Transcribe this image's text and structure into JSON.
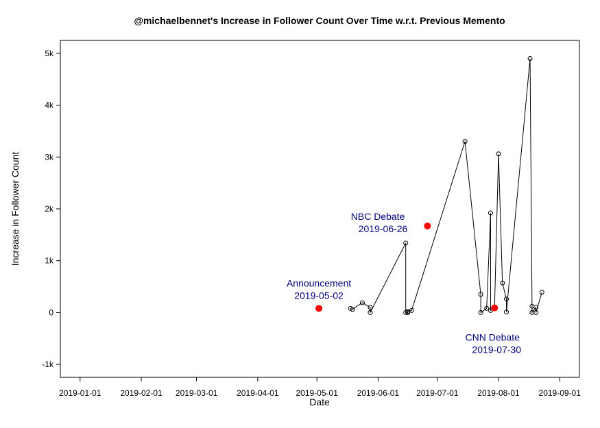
{
  "chart_data": {
    "type": "line",
    "title": "@michaelbennet's Increase in Follower Count Over Time w.r.t. Previous Memento",
    "xlabel": "Date",
    "ylabel": "Increase in Follower Count",
    "x_ticks": [
      "2019-01-01",
      "2019-02-01",
      "2019-03-01",
      "2019-04-01",
      "2019-05-01",
      "2019-06-01",
      "2019-07-01",
      "2019-08-01",
      "2019-09-01"
    ],
    "y_ticks": [
      -1000,
      0,
      1000,
      2000,
      3000,
      4000,
      5000
    ],
    "y_tick_labels": [
      "-1k",
      "0",
      "1k",
      "2k",
      "3k",
      "4k",
      "5k"
    ],
    "xlim": [
      "2018-12-22",
      "2019-09-11"
    ],
    "ylim": [
      -1250,
      5250
    ],
    "series": [
      {
        "color": "#000000",
        "points": [
          {
            "x": "2019-05-18",
            "y": 80
          },
          {
            "x": "2019-05-19",
            "y": 60
          },
          {
            "x": "2019-05-24",
            "y": 190
          },
          {
            "x": "2019-05-28",
            "y": 100
          },
          {
            "x": "2019-05-28",
            "y": 0
          },
          {
            "x": "2019-06-15",
            "y": 1340
          },
          {
            "x": "2019-06-15",
            "y": 0
          },
          {
            "x": "2019-06-16",
            "y": 0
          },
          {
            "x": "2019-06-16",
            "y": 20
          },
          {
            "x": "2019-06-18",
            "y": 40
          },
          {
            "x": "2019-07-15",
            "y": 3300
          },
          {
            "x": "2019-07-23",
            "y": 350
          },
          {
            "x": "2019-07-23",
            "y": 0
          },
          {
            "x": "2019-07-26",
            "y": 80
          },
          {
            "x": "2019-07-28",
            "y": 1920
          },
          {
            "x": "2019-07-28",
            "y": 40
          },
          {
            "x": "2019-07-30",
            "y": 80
          },
          {
            "x": "2019-08-01",
            "y": 3060
          },
          {
            "x": "2019-08-03",
            "y": 570
          },
          {
            "x": "2019-08-05",
            "y": 260
          },
          {
            "x": "2019-08-05",
            "y": 10
          },
          {
            "x": "2019-08-17",
            "y": 4900
          },
          {
            "x": "2019-08-18",
            "y": 120
          },
          {
            "x": "2019-08-18",
            "y": 0
          },
          {
            "x": "2019-08-20",
            "y": 100
          },
          {
            "x": "2019-08-20",
            "y": 0
          },
          {
            "x": "2019-08-23",
            "y": 390
          }
        ]
      }
    ],
    "events": [
      {
        "date": "2019-05-02",
        "y": 80,
        "name": "Announcement",
        "label_date": "2019-05-02",
        "label_position": "above",
        "color": "#ff0000",
        "text_color": "#000080"
      },
      {
        "date": "2019-06-26",
        "y": 1670,
        "name": "NBC Debate",
        "label_date": "2019-06-26",
        "label_position": "above-left",
        "color": "#ff0000",
        "text_color": "#000080"
      },
      {
        "date": "2019-07-30",
        "y": 90,
        "name": "CNN Debate",
        "label_date": "2019-07-30",
        "label_position": "below",
        "color": "#ff0000",
        "text_color": "#000080"
      }
    ],
    "grid": false,
    "legend": "none"
  }
}
